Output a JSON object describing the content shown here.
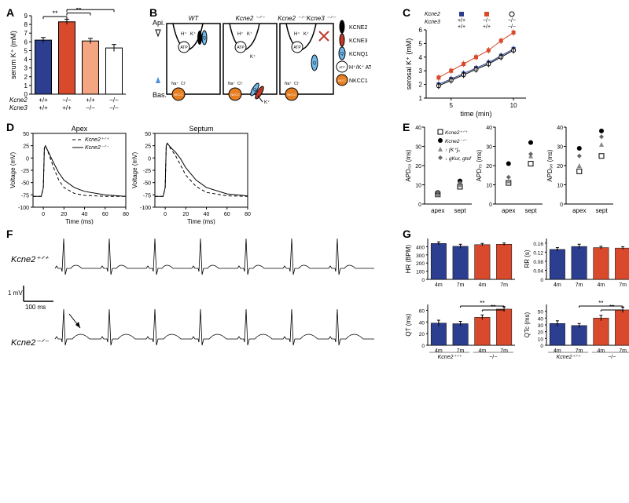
{
  "panelA": {
    "ylabel": "serum K⁺ (mM)",
    "ylim": [
      0,
      9
    ],
    "yticks": [
      0,
      1,
      2,
      3,
      4,
      5,
      6,
      7,
      8,
      9
    ],
    "bars": [
      {
        "val": 6.2,
        "err": 0.3,
        "color": "#2c3e8f",
        "kcne2": "+/+",
        "kcne3": "+/+"
      },
      {
        "val": 8.3,
        "err": 0.3,
        "color": "#d94a2c",
        "kcne2": "−/−",
        "kcne3": "+/+"
      },
      {
        "val": 6.1,
        "err": 0.3,
        "color": "#f4a582",
        "kcne2": "+/+",
        "kcne3": "−/−"
      },
      {
        "val": 5.3,
        "err": 0.4,
        "color": "#ffffff",
        "kcne2": "−/−",
        "kcne3": "−/−"
      }
    ],
    "sig": "**",
    "geno_labels": [
      "Kcne2",
      "Kcne3"
    ]
  },
  "panelB": {
    "titles": [
      "WT",
      "Kcne2 ⁻ᐟ⁻",
      "Kcne2 ⁻ᐟ⁻Kcne3 ⁻ᐟ⁻"
    ],
    "api": "Api.",
    "bas": "Bas.",
    "legend": [
      {
        "label": "KCNE2",
        "color": "#000000",
        "shape": "oval"
      },
      {
        "label": "KCNE3",
        "color": "#c0392b",
        "shape": "oval"
      },
      {
        "label": "KCNQ1",
        "color": "#6fb7e8",
        "shape": "oval-q"
      },
      {
        "label": "H⁺/K⁺ ATPase",
        "color": "#ffffff",
        "shape": "circle-atp"
      },
      {
        "label": "NKCC1",
        "color": "#e67e22",
        "shape": "circle-nkcc"
      }
    ]
  },
  "panelC": {
    "ylabel": "serosal K⁺ (mM)",
    "xlabel": "time (min)",
    "xlim": [
      3,
      11
    ],
    "ylim": [
      1,
      6
    ],
    "xticks": [
      5,
      10
    ],
    "yticks": [
      1,
      2,
      3,
      4,
      5,
      6
    ],
    "legend_rows": [
      {
        "k2": "+/+",
        "k3": "+/+",
        "marker": "square-fill",
        "color": "#2c3e8f"
      },
      {
        "k2": "−/−",
        "k3": "+/+",
        "marker": "square-fill",
        "color": "#d94a2c"
      },
      {
        "k2": "−/−",
        "k3": "−/−",
        "marker": "circle-open",
        "color": "#000000"
      }
    ],
    "series": [
      {
        "color": "#2c3e8f",
        "x": [
          4,
          5,
          6,
          7,
          8,
          9,
          10
        ],
        "y": [
          2.0,
          2.4,
          2.8,
          3.2,
          3.6,
          4.1,
          4.6
        ]
      },
      {
        "color": "#d94a2c",
        "x": [
          4,
          5,
          6,
          7,
          8,
          9,
          10
        ],
        "y": [
          2.5,
          3.0,
          3.5,
          4.0,
          4.5,
          5.2,
          5.8
        ]
      },
      {
        "color": "#000000",
        "x": [
          4,
          5,
          6,
          7,
          8,
          9,
          10
        ],
        "y": [
          1.9,
          2.3,
          2.7,
          3.1,
          3.5,
          4.0,
          4.5
        ],
        "open": true
      }
    ]
  },
  "panelD": {
    "left_title": "Apex",
    "right_title": "Septum",
    "ylabel": "Voltage (mV)",
    "xlabel": "Time (ms)",
    "xlim": [
      -10,
      80
    ],
    "ylim": [
      -100,
      50
    ],
    "xticks": [
      0,
      20,
      40,
      60,
      80
    ],
    "yticks": [
      -100,
      -75,
      -50,
      -25,
      0,
      25,
      50
    ],
    "legend": [
      "Kcne2⁺ᐟ⁺",
      "Kcne2⁻ᐟ⁻"
    ],
    "apex_wt": {
      "x": [
        -10,
        -2,
        0,
        1,
        2,
        5,
        10,
        15,
        20,
        30,
        40,
        60,
        80
      ],
      "y": [
        -78,
        -78,
        -60,
        20,
        25,
        10,
        -20,
        -45,
        -60,
        -72,
        -76,
        -78,
        -78
      ]
    },
    "apex_ko": {
      "x": [
        -10,
        -2,
        0,
        1,
        2,
        5,
        10,
        15,
        20,
        30,
        40,
        60,
        80
      ],
      "y": [
        -78,
        -78,
        -60,
        20,
        25,
        12,
        -10,
        -30,
        -45,
        -60,
        -68,
        -75,
        -78
      ]
    },
    "sept_wt": {
      "x": [
        -10,
        -2,
        0,
        1,
        2,
        5,
        10,
        15,
        20,
        30,
        40,
        60,
        80
      ],
      "y": [
        -78,
        -78,
        -60,
        25,
        30,
        20,
        5,
        -15,
        -35,
        -58,
        -70,
        -77,
        -78
      ]
    },
    "sept_ko": {
      "x": [
        -10,
        -2,
        0,
        1,
        2,
        5,
        10,
        15,
        20,
        30,
        40,
        60,
        80
      ],
      "y": [
        -78,
        -78,
        -60,
        25,
        30,
        22,
        12,
        -2,
        -20,
        -45,
        -60,
        -73,
        -77
      ]
    }
  },
  "panelE": {
    "cats": [
      "apex",
      "sept"
    ],
    "plots": [
      {
        "ylabel": "APD₅₀ (ms)",
        "ylim": [
          0,
          40
        ],
        "yticks": [
          0,
          10,
          20,
          30,
          40
        ],
        "series": [
          {
            "marker": "square-open",
            "color": "#000",
            "pts": [
              5,
              9
            ]
          },
          {
            "marker": "circle-fill",
            "color": "#000",
            "pts": [
              6,
              12
            ]
          },
          {
            "marker": "tri-up",
            "color": "#888",
            "pts": [
              5,
              10
            ]
          },
          {
            "marker": "diamond",
            "color": "#666",
            "pts": [
              6,
              11
            ]
          }
        ]
      },
      {
        "ylabel": "APD₇₅ (ms)",
        "ylim": [
          0,
          40
        ],
        "yticks": [
          0,
          10,
          20,
          30,
          40
        ],
        "series": [
          {
            "marker": "square-open",
            "color": "#000",
            "pts": [
              11,
              21
            ]
          },
          {
            "marker": "circle-fill",
            "color": "#000",
            "pts": [
              21,
              32
            ]
          },
          {
            "marker": "tri-up",
            "color": "#888",
            "pts": [
              12,
              25
            ]
          },
          {
            "marker": "diamond",
            "color": "#666",
            "pts": [
              14,
              26
            ]
          }
        ]
      },
      {
        "ylabel": "APD₉₀ (ms)",
        "ylim": [
          0,
          40
        ],
        "yticks": [
          0,
          10,
          20,
          30,
          40
        ],
        "series": [
          {
            "marker": "square-open",
            "color": "#000",
            "pts": [
              17,
              25
            ]
          },
          {
            "marker": "circle-fill",
            "color": "#000",
            "pts": [
              29,
              38
            ]
          },
          {
            "marker": "tri-up",
            "color": "#888",
            "pts": [
              20,
              31
            ]
          },
          {
            "marker": "diamond",
            "color": "#666",
            "pts": [
              25,
              35
            ]
          }
        ]
      }
    ],
    "legend": [
      {
        "marker": "square-open",
        "color": "#000",
        "label": "Kcne2⁺ᐟ⁺"
      },
      {
        "marker": "circle-fill",
        "color": "#000",
        "label": "Kcne2⁻ᐟ⁻"
      },
      {
        "marker": "tri-up",
        "color": "#888",
        "label": "↑ [K⁺]ₒ"
      },
      {
        "marker": "diamond",
        "color": "#666",
        "label": "↓ gKur, gtof"
      }
    ]
  },
  "panelF": {
    "wt_label": "Kcne2⁺ᐟ⁺",
    "ko_label": "Kcne2⁻ᐟ⁻",
    "scale_y": "1 mV",
    "scale_x": "100 ms"
  },
  "panelG": {
    "plots": [
      {
        "ylabel": "HR (BPM)",
        "ylim": [
          0,
          500
        ],
        "yticks": [
          0,
          100,
          200,
          300,
          400
        ],
        "bars": [
          {
            "v": 440,
            "e": 20,
            "c": "#2c3e8f"
          },
          {
            "v": 405,
            "e": 25,
            "c": "#2c3e8f"
          },
          {
            "v": 425,
            "e": 15,
            "c": "#d94a2c"
          },
          {
            "v": 430,
            "e": 15,
            "c": "#d94a2c"
          }
        ],
        "sig": []
      },
      {
        "ylabel": "RR (s)",
        "ylim": [
          0,
          0.18
        ],
        "yticks": [
          0,
          0.04,
          0.08,
          0.12,
          0.16
        ],
        "bars": [
          {
            "v": 0.132,
            "e": 0.008,
            "c": "#2c3e8f"
          },
          {
            "v": 0.145,
            "e": 0.01,
            "c": "#2c3e8f"
          },
          {
            "v": 0.14,
            "e": 0.006,
            "c": "#d94a2c"
          },
          {
            "v": 0.138,
            "e": 0.006,
            "c": "#d94a2c"
          }
        ],
        "sig": []
      },
      {
        "ylabel": "QT (ms)",
        "ylim": [
          0,
          70
        ],
        "yticks": [
          0,
          20,
          40,
          60
        ],
        "bars": [
          {
            "v": 38,
            "e": 5,
            "c": "#2c3e8f"
          },
          {
            "v": 37,
            "e": 4,
            "c": "#2c3e8f"
          },
          {
            "v": 48,
            "e": 4,
            "c": "#d94a2c"
          },
          {
            "v": 62,
            "e": 4,
            "c": "#d94a2c"
          }
        ],
        "sig": [
          [
            1,
            3
          ],
          [
            2,
            3
          ]
        ]
      },
      {
        "ylabel": "QTc (ms)",
        "ylim": [
          0,
          60
        ],
        "yticks": [
          0,
          10,
          20,
          30,
          40,
          50
        ],
        "bars": [
          {
            "v": 32,
            "e": 4,
            "c": "#2c3e8f"
          },
          {
            "v": 29,
            "e": 3,
            "c": "#2c3e8f"
          },
          {
            "v": 40,
            "e": 4,
            "c": "#d94a2c"
          },
          {
            "v": 52,
            "e": 4,
            "c": "#d94a2c"
          }
        ],
        "sig": [
          [
            1,
            3
          ],
          [
            2,
            3
          ]
        ]
      }
    ],
    "xlabels": [
      "4m",
      "7m",
      "4m",
      "7m"
    ],
    "geno": [
      "Kcne2⁺ᐟ⁺",
      "−/−"
    ],
    "sig_mark": "**"
  }
}
